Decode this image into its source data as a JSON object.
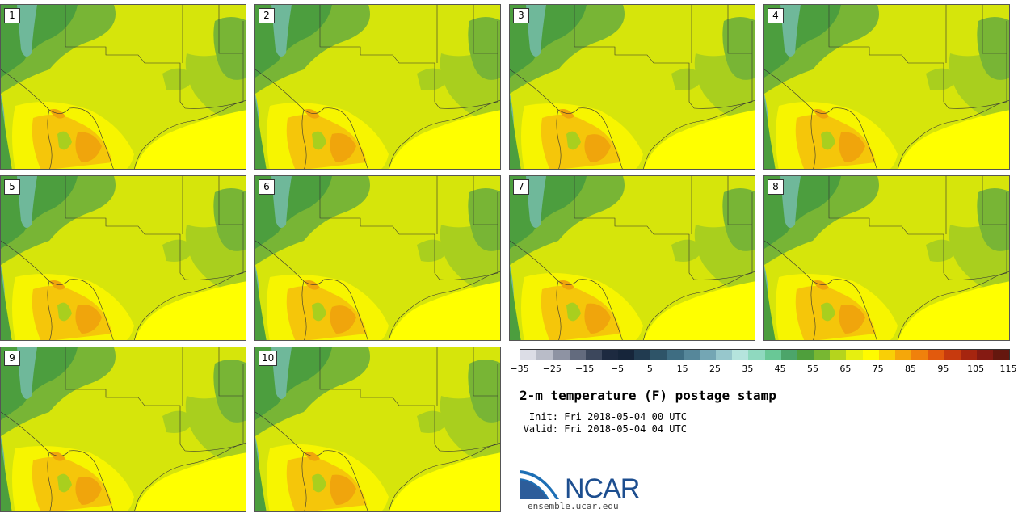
{
  "title": "2-m temperature (F) postage stamp",
  "init_label": "Init:",
  "init_value": "Fri 2018-05-04 00 UTC",
  "valid_label": "Valid:",
  "valid_value": "Fri 2018-05-04 04 UTC",
  "logo_text": "NCAR",
  "logo_url": "ensemble.ucar.edu",
  "panels": [
    "1",
    "2",
    "3",
    "4",
    "5",
    "6",
    "7",
    "8",
    "9",
    "10"
  ],
  "colorbar": {
    "colors": [
      "#dcdde6",
      "#b9bcc8",
      "#8e93a3",
      "#636b7e",
      "#3c475c",
      "#1d2a40",
      "#16253a",
      "#213b50",
      "#2e5468",
      "#3e6d82",
      "#56879a",
      "#74a6b4",
      "#97c7cc",
      "#b5e4dd",
      "#8fd9bf",
      "#69c896",
      "#4ca56a",
      "#4f9f3c",
      "#78b732",
      "#b5d41d",
      "#e6ef10",
      "#fffb00",
      "#f9cf06",
      "#f5a70a",
      "#f0810c",
      "#e25a0d",
      "#c73a0e",
      "#a6250f",
      "#851a12",
      "#65170e"
    ],
    "tick_labels": [
      "−35",
      "−25",
      "−15",
      "−5",
      "5",
      "15",
      "25",
      "35",
      "45",
      "55",
      "65",
      "75",
      "85",
      "95",
      "105",
      "115"
    ]
  },
  "map_colors": {
    "green": "#4c9e3e",
    "green2": "#78b535",
    "lime": "#a9cf1e",
    "yellowgreen": "#d6e50b",
    "yellow": "#f7f500",
    "pale": "#ffff00",
    "orange": "#f5c60a",
    "deeporange": "#f0a50c",
    "teal": "#6fb89a"
  }
}
